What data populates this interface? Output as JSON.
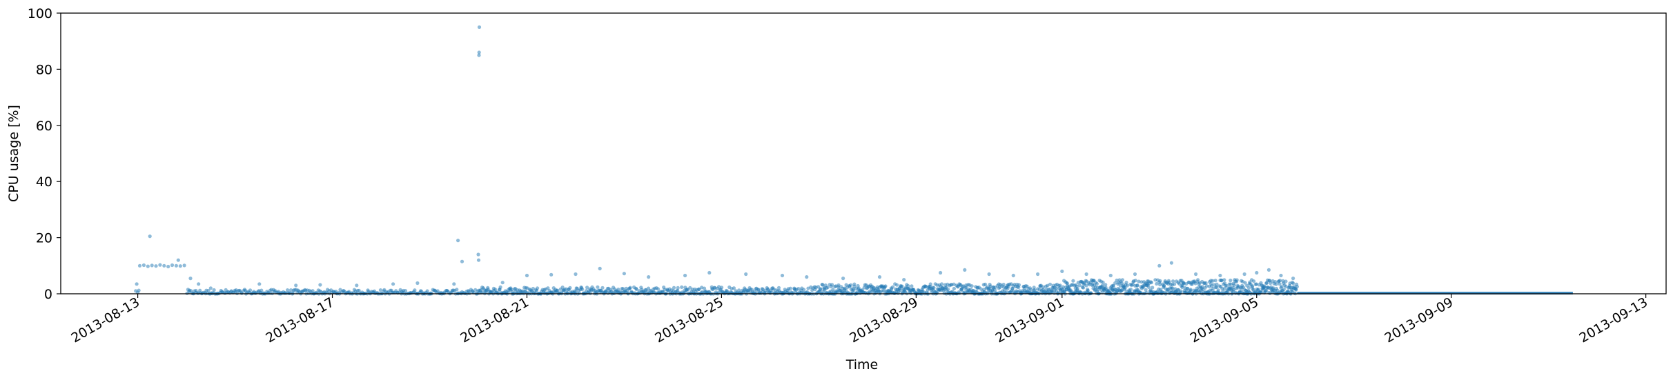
{
  "chart_data": {
    "type": "scatter",
    "title": "",
    "xlabel": "Time",
    "ylabel": "CPU usage [%]",
    "x_axis": {
      "kind": "date",
      "range": [
        "2013-08-11T10:00",
        "2013-09-13T10:00"
      ],
      "tick_labels": [
        "2013-08-13",
        "2013-08-17",
        "2013-08-21",
        "2013-08-25",
        "2013-08-29",
        "2013-09-01",
        "2013-09-05",
        "2013-09-09",
        "2013-09-13"
      ]
    },
    "y_axis": {
      "range": [
        0,
        100
      ],
      "tick_labels": [
        "0",
        "20",
        "40",
        "60",
        "80",
        "100"
      ]
    },
    "grid": false,
    "legend": "none",
    "colors": {
      "points": "#1f77b4",
      "axes": "#000000",
      "background": "#ffffff"
    },
    "series": [
      {
        "points": [
          [
            "2013-08-12T23:00",
            1.0
          ],
          [
            "2013-08-12T23:30",
            3.5
          ],
          [
            "2013-08-13T00:00",
            0.5
          ],
          [
            "2013-08-13T00:30",
            1.2
          ],
          [
            "2013-08-13T01:00",
            10.0
          ],
          [
            "2013-08-13T03:00",
            10.2
          ],
          [
            "2013-08-13T05:00",
            9.8
          ],
          [
            "2013-08-13T07:00",
            10.1
          ],
          [
            "2013-08-13T09:00",
            9.9
          ],
          [
            "2013-08-13T11:00",
            10.3
          ],
          [
            "2013-08-13T13:00",
            10.0
          ],
          [
            "2013-08-13T15:00",
            9.7
          ],
          [
            "2013-08-13T17:00",
            10.2
          ],
          [
            "2013-08-13T19:00",
            10.0
          ],
          [
            "2013-08-13T21:00",
            9.9
          ],
          [
            "2013-08-13T23:00",
            10.1
          ],
          [
            "2013-08-13T06:00",
            20.5
          ],
          [
            "2013-08-13T20:00",
            12.0
          ],
          [
            "2013-08-14T02:00",
            5.5
          ],
          [
            "2013-08-14T06:00",
            3.5
          ],
          [
            "2013-08-14T12:00",
            2.0
          ],
          [
            "2013-08-15T12:00",
            3.5
          ],
          [
            "2013-08-16T06:00",
            3.0
          ],
          [
            "2013-08-16T18:00",
            3.2
          ],
          [
            "2013-08-17T12:00",
            3.0
          ],
          [
            "2013-08-18T06:00",
            3.5
          ],
          [
            "2013-08-18T18:00",
            3.8
          ],
          [
            "2013-08-19T12:00",
            3.5
          ],
          [
            "2013-08-19T14:00",
            19.0
          ],
          [
            "2013-08-19T16:00",
            11.5
          ],
          [
            "2013-08-20T00:00",
            14.0
          ],
          [
            "2013-08-20T00:10",
            12.0
          ],
          [
            "2013-08-20T00:20",
            85.0
          ],
          [
            "2013-08-20T00:25",
            86.0
          ],
          [
            "2013-08-20T00:30",
            95.0
          ],
          [
            "2013-08-20T12:00",
            4.0
          ],
          [
            "2013-08-21T00:00",
            6.5
          ],
          [
            "2013-08-21T12:00",
            6.8
          ],
          [
            "2013-08-22T00:00",
            7.0
          ],
          [
            "2013-08-22T12:00",
            9.0
          ],
          [
            "2013-08-23T00:00",
            7.2
          ],
          [
            "2013-08-23T12:00",
            6.0
          ],
          [
            "2013-08-24T06:00",
            6.5
          ],
          [
            "2013-08-24T18:00",
            7.5
          ],
          [
            "2013-08-25T12:00",
            7.0
          ],
          [
            "2013-08-26T06:00",
            6.5
          ],
          [
            "2013-08-26T18:00",
            6.0
          ],
          [
            "2013-08-27T12:00",
            5.5
          ],
          [
            "2013-08-28T06:00",
            6.0
          ],
          [
            "2013-08-28T18:00",
            5.0
          ],
          [
            "2013-08-29T12:00",
            7.5
          ],
          [
            "2013-08-30T00:00",
            8.5
          ],
          [
            "2013-08-30T12:00",
            7.0
          ],
          [
            "2013-08-31T00:00",
            6.5
          ],
          [
            "2013-08-31T12:00",
            7.0
          ],
          [
            "2013-09-01T00:00",
            8.0
          ],
          [
            "2013-09-01T12:00",
            7.0
          ],
          [
            "2013-09-02T00:00",
            6.5
          ],
          [
            "2013-09-02T12:00",
            7.0
          ],
          [
            "2013-09-03T00:00",
            10.0
          ],
          [
            "2013-09-03T06:00",
            11.0
          ],
          [
            "2013-09-03T18:00",
            7.0
          ],
          [
            "2013-09-04T06:00",
            6.5
          ],
          [
            "2013-09-04T18:00",
            7.0
          ],
          [
            "2013-09-05T00:00",
            7.5
          ],
          [
            "2013-09-05T06:00",
            8.5
          ],
          [
            "2013-09-05T12:00",
            6.5
          ],
          [
            "2013-09-05T18:00",
            5.5
          ]
        ],
        "bands": [
          {
            "from": "2013-08-14T00:00",
            "to": "2013-08-20T00:00",
            "min": 0.0,
            "max": 1.5,
            "density": 300
          },
          {
            "from": "2013-08-20T00:00",
            "to": "2013-08-27T00:00",
            "min": 0.0,
            "max": 2.5,
            "density": 500
          },
          {
            "from": "2013-08-27T00:00",
            "to": "2013-09-01T00:00",
            "min": 0.0,
            "max": 3.5,
            "density": 500
          },
          {
            "from": "2013-09-01T00:00",
            "to": "2013-09-05T20:00",
            "min": 0.0,
            "max": 5.0,
            "density": 600
          }
        ],
        "flat_segment": {
          "from": "2013-09-05T20:00",
          "to": "2013-09-11T12:00",
          "value": 0.0
        }
      }
    ]
  }
}
